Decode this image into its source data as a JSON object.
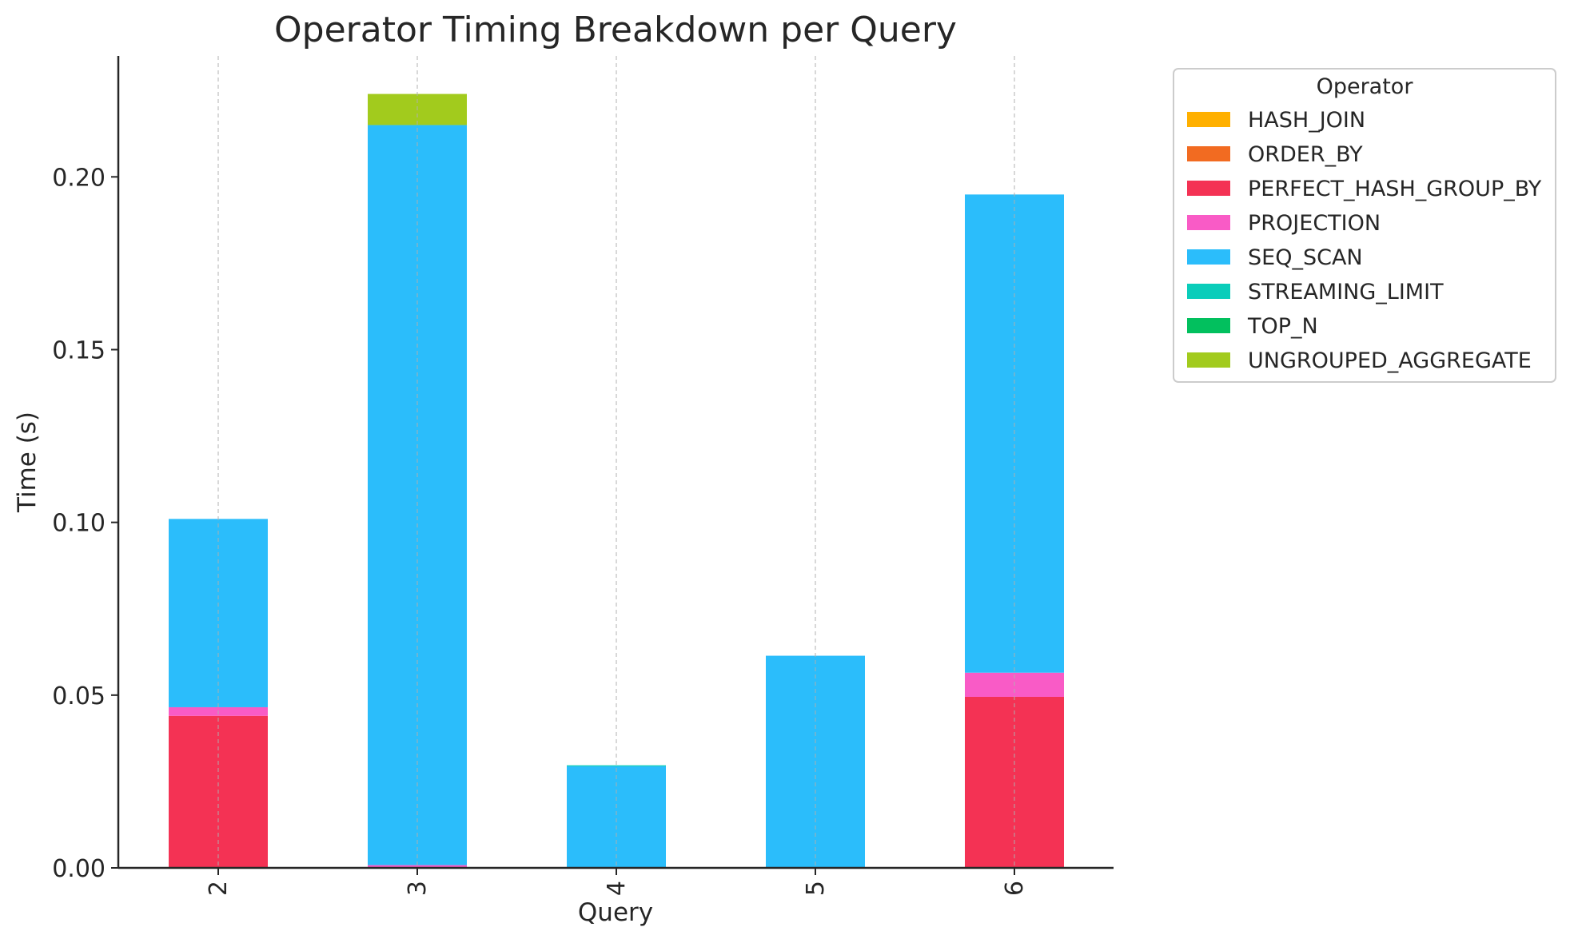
{
  "chart_data": {
    "type": "bar",
    "stacked": true,
    "title": "Operator Timing Breakdown per Query",
    "xlabel": "Query",
    "ylabel": "Time (s)",
    "categories": [
      "2",
      "3",
      "4",
      "5",
      "6"
    ],
    "ylim": [
      0,
      0.235
    ],
    "yticks": [
      0.0,
      0.05,
      0.1,
      0.15,
      0.2
    ],
    "ytick_labels": [
      "0.00",
      "0.05",
      "0.10",
      "0.15",
      "0.20"
    ],
    "grid": "vertical dashed",
    "legend": {
      "title": "Operator",
      "placement": "outside right, top"
    },
    "series": [
      {
        "name": "HASH_JOIN",
        "color": "#FFB000",
        "values": [
          0,
          0,
          0,
          0,
          0
        ]
      },
      {
        "name": "ORDER_BY",
        "color": "#F26B21",
        "values": [
          0,
          0,
          0,
          0,
          0
        ]
      },
      {
        "name": "PERFECT_HASH_GROUP_BY",
        "color": "#F43254",
        "values": [
          0.044,
          0,
          0,
          0,
          0.0495
        ]
      },
      {
        "name": "PROJECTION",
        "color": "#F95BC6",
        "values": [
          0.0025,
          0.0008,
          0,
          0,
          0.007
        ]
      },
      {
        "name": "SEQ_SCAN",
        "color": "#2BBDFB",
        "values": [
          0.0545,
          0.2142,
          0.0294,
          0.0614,
          0.1384
        ]
      },
      {
        "name": "STREAMING_LIMIT",
        "color": "#0ACDBA",
        "values": [
          0,
          0,
          0.0003,
          0,
          0
        ]
      },
      {
        "name": "TOP_N",
        "color": "#02C05E",
        "values": [
          0,
          0,
          0,
          0,
          0
        ]
      },
      {
        "name": "UNGROUPED_AGGREGATE",
        "color": "#A2CB1D",
        "values": [
          0,
          0.009,
          0,
          0,
          0
        ]
      }
    ]
  }
}
